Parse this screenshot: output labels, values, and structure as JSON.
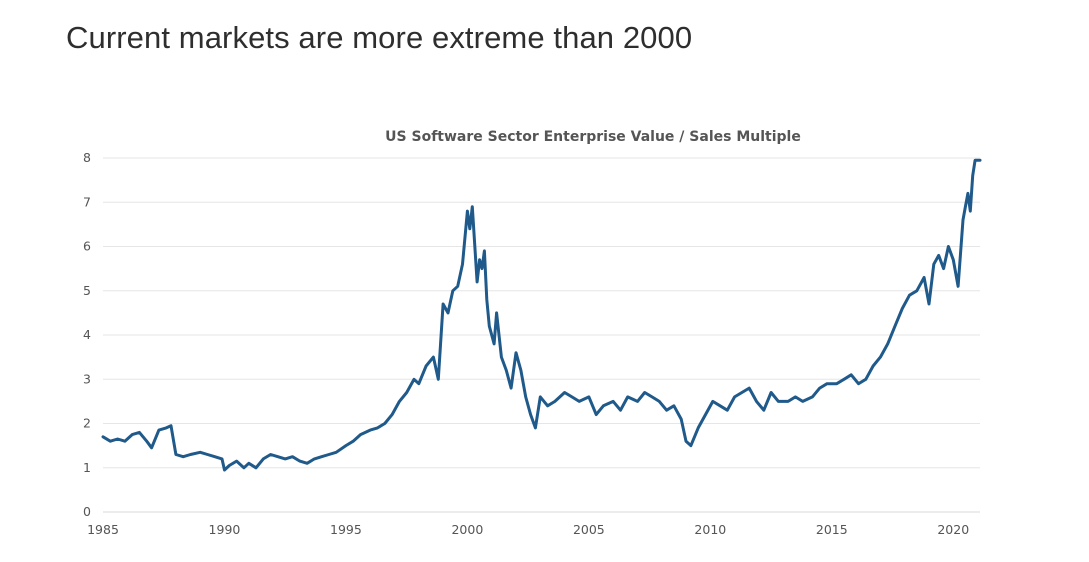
{
  "page": {
    "title": "Current markets are more extreme than 2000"
  },
  "chart_data": {
    "type": "line",
    "title": "US Software Sector Enterprise Value / Sales Multiple",
    "xlabel": "",
    "ylabel": "",
    "xlim": [
      1985,
      2021.1
    ],
    "ylim": [
      0,
      8
    ],
    "x_ticks": [
      "1985",
      "1990",
      "1995",
      "2000",
      "2005",
      "2010",
      "2015",
      "2020"
    ],
    "y_ticks": [
      "0",
      "1",
      "2",
      "3",
      "4",
      "5",
      "6",
      "7",
      "8"
    ],
    "grid": true,
    "line_color": "#1f5a8a",
    "series": [
      {
        "x": [
          1985.0,
          1985.3,
          1985.6,
          1985.9,
          1986.2,
          1986.5,
          1986.8,
          1987.0,
          1987.3,
          1987.6,
          1987.8,
          1988.0,
          1988.3,
          1988.6,
          1989.0,
          1989.3,
          1989.6,
          1989.9,
          1990.0,
          1990.2,
          1990.5,
          1990.8,
          1991.0,
          1991.3,
          1991.6,
          1991.9,
          1992.2,
          1992.5,
          1992.8,
          1993.1,
          1993.4,
          1993.7,
          1994.0,
          1994.3,
          1994.6,
          1995.0,
          1995.3,
          1995.6,
          1996.0,
          1996.3,
          1996.6,
          1996.9,
          1997.2,
          1997.5,
          1997.8,
          1998.0,
          1998.3,
          1998.6,
          1998.8,
          1999.0,
          1999.2,
          1999.4,
          1999.6,
          1999.8,
          2000.0,
          2000.1,
          2000.2,
          2000.4,
          2000.5,
          2000.6,
          2000.7,
          2000.8,
          2000.9,
          2001.1,
          2001.2,
          2001.4,
          2001.6,
          2001.8,
          2002.0,
          2002.2,
          2002.4,
          2002.6,
          2002.8,
          2003.0,
          2003.3,
          2003.6,
          2004.0,
          2004.3,
          2004.6,
          2005.0,
          2005.3,
          2005.6,
          2006.0,
          2006.3,
          2006.6,
          2007.0,
          2007.3,
          2007.6,
          2007.9,
          2008.2,
          2008.5,
          2008.8,
          2009.0,
          2009.2,
          2009.5,
          2009.8,
          2010.1,
          2010.4,
          2010.7,
          2011.0,
          2011.3,
          2011.6,
          2011.9,
          2012.2,
          2012.5,
          2012.8,
          2013.2,
          2013.5,
          2013.8,
          2014.2,
          2014.5,
          2014.8,
          2015.2,
          2015.5,
          2015.8,
          2016.1,
          2016.4,
          2016.7,
          2017.0,
          2017.3,
          2017.6,
          2017.9,
          2018.2,
          2018.5,
          2018.8,
          2019.0,
          2019.2,
          2019.4,
          2019.6,
          2019.8,
          2020.0,
          2020.2,
          2020.4,
          2020.5,
          2020.6,
          2020.7,
          2020.8,
          2020.9,
          2021.0,
          2021.1
        ],
        "values": [
          1.7,
          1.6,
          1.65,
          1.6,
          1.75,
          1.8,
          1.6,
          1.45,
          1.85,
          1.9,
          1.95,
          1.3,
          1.25,
          1.3,
          1.35,
          1.3,
          1.25,
          1.2,
          0.95,
          1.05,
          1.15,
          1.0,
          1.1,
          1.0,
          1.2,
          1.3,
          1.25,
          1.2,
          1.25,
          1.15,
          1.1,
          1.2,
          1.25,
          1.3,
          1.35,
          1.5,
          1.6,
          1.75,
          1.85,
          1.9,
          2.0,
          2.2,
          2.5,
          2.7,
          3.0,
          2.9,
          3.3,
          3.5,
          3.0,
          4.7,
          4.5,
          5.0,
          5.1,
          5.6,
          6.8,
          6.4,
          6.9,
          5.2,
          5.7,
          5.5,
          5.9,
          4.8,
          4.2,
          3.8,
          4.5,
          3.5,
          3.2,
          2.8,
          3.6,
          3.2,
          2.6,
          2.2,
          1.9,
          2.6,
          2.4,
          2.5,
          2.7,
          2.6,
          2.5,
          2.6,
          2.2,
          2.4,
          2.5,
          2.3,
          2.6,
          2.5,
          2.7,
          2.6,
          2.5,
          2.3,
          2.4,
          2.1,
          1.6,
          1.5,
          1.9,
          2.2,
          2.5,
          2.4,
          2.3,
          2.6,
          2.7,
          2.8,
          2.5,
          2.3,
          2.7,
          2.5,
          2.5,
          2.6,
          2.5,
          2.6,
          2.8,
          2.9,
          2.9,
          3.0,
          3.1,
          2.9,
          3.0,
          3.3,
          3.5,
          3.8,
          4.2,
          4.6,
          4.9,
          5.0,
          5.3,
          4.7,
          5.6,
          5.8,
          5.5,
          6.0,
          5.7,
          5.1,
          6.6,
          6.9,
          7.2,
          6.8,
          7.6,
          7.95,
          7.95,
          7.95
        ]
      }
    ]
  }
}
